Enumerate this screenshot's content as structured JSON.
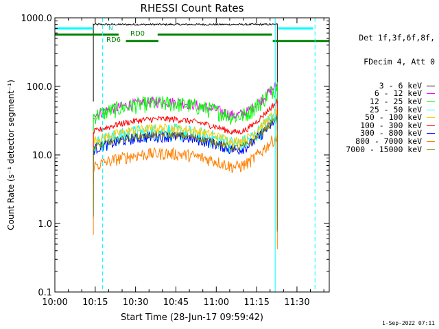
{
  "chart_data": {
    "type": "line",
    "title": "RHESSI Count Rates",
    "xlabel": "Start Time (28-Jun-17 09:59:42)",
    "ylabel": "Count Rate (s⁻¹ detector segment⁻¹)",
    "x_tick_labels": [
      "10:00",
      "10:15",
      "10:30",
      "10:45",
      "11:00",
      "11:15",
      "11:30"
    ],
    "x_ticks_minutes": [
      0,
      15,
      30,
      45,
      60,
      75,
      90
    ],
    "xlim_minutes": [
      0,
      102
    ],
    "y_scale": "log",
    "ylim": [
      0.1,
      1000
    ],
    "y_tick_labels": [
      "0.1",
      "1.0",
      "10.0",
      "100.0",
      "1000.0"
    ],
    "y_ticks": [
      0.1,
      1,
      10,
      100,
      1000
    ],
    "legend_header": [
      "Det 1f,3f,6f,8f,",
      "FDecim 4, Att 0"
    ],
    "legend_placement": "right",
    "annotations": {
      "N": "N",
      "RD0": "RD0",
      "RD6": "RD6"
    },
    "segment_minutes": [
      14.3,
      82.7
    ],
    "series": [
      {
        "name": "3 - 6 keV",
        "color": "#000000",
        "level": 800,
        "shape_ratio": [
          1.0,
          1.0,
          1.0
        ],
        "noise": 0.01
      },
      {
        "name": "6 - 12 keV",
        "color": "#ff00ff",
        "level": 48,
        "shape_ratio": [
          1.0,
          1.6,
          1.0,
          2.5
        ],
        "noise": 0.06
      },
      {
        "name": "12 - 25 keV",
        "color": "#00ff00",
        "level": 46,
        "shape_ratio": [
          1.0,
          1.6,
          1.0,
          2.8
        ],
        "noise": 0.09
      },
      {
        "name": "25 - 50 keV",
        "color": "#00ffff",
        "level": 18,
        "shape_ratio": [
          1.0,
          1.6,
          1.0,
          2.4
        ],
        "noise": 0.1
      },
      {
        "name": "50 - 100 keV",
        "color": "#ffcc00",
        "level": 20,
        "shape_ratio": [
          1.0,
          1.5,
          1.0,
          2.0
        ],
        "noise": 0.05
      },
      {
        "name": "100 - 300 keV",
        "color": "#ff0000",
        "level": 27,
        "shape_ratio": [
          1.0,
          1.4,
          1.0,
          2.2
        ],
        "noise": 0.035
      },
      {
        "name": "300 - 800 keV",
        "color": "#0000ff",
        "level": 15,
        "shape_ratio": [
          1.0,
          1.4,
          1.0,
          2.0
        ],
        "noise": 0.06
      },
      {
        "name": "800 - 7000 keV",
        "color": "#ff8000",
        "level": 8.5,
        "shape_ratio": [
          1.0,
          1.4,
          1.0,
          2.0
        ],
        "noise": 0.07
      },
      {
        "name": "7000 - 15000 keV",
        "color": "#808000",
        "level": 16,
        "shape_ratio": [
          1.0,
          1.4,
          1.0,
          2.0
        ],
        "noise": 0.04
      }
    ],
    "flags": [
      {
        "name": "N",
        "color": "#00ffff",
        "level": 700,
        "x_start": 0,
        "x_end": 14.3
      },
      {
        "name": "N",
        "color": "#00ffff",
        "level": 700,
        "x_start": 83,
        "x_end": 96
      },
      {
        "name": "RD0",
        "color": "#008000",
        "level": 570,
        "x_start": 0,
        "x_end": 23.7
      },
      {
        "name": "RD0",
        "color": "#008000",
        "level": 570,
        "x_start": 38.2,
        "x_end": 80.7
      },
      {
        "name": "RD6",
        "color": "#008000",
        "level": 460,
        "x_start": 26.4,
        "x_end": 38.5
      },
      {
        "name": "RD6",
        "color": "#008000",
        "level": 460,
        "x_start": 81,
        "x_end": 102
      }
    ],
    "vlines_solid_minutes": [
      0,
      81.9
    ],
    "vlines_dashed_minutes": [
      17.7,
      96.7
    ],
    "vline_color": "#00ffff",
    "grid": false
  },
  "footer": "1-Sep-2022 07:11"
}
